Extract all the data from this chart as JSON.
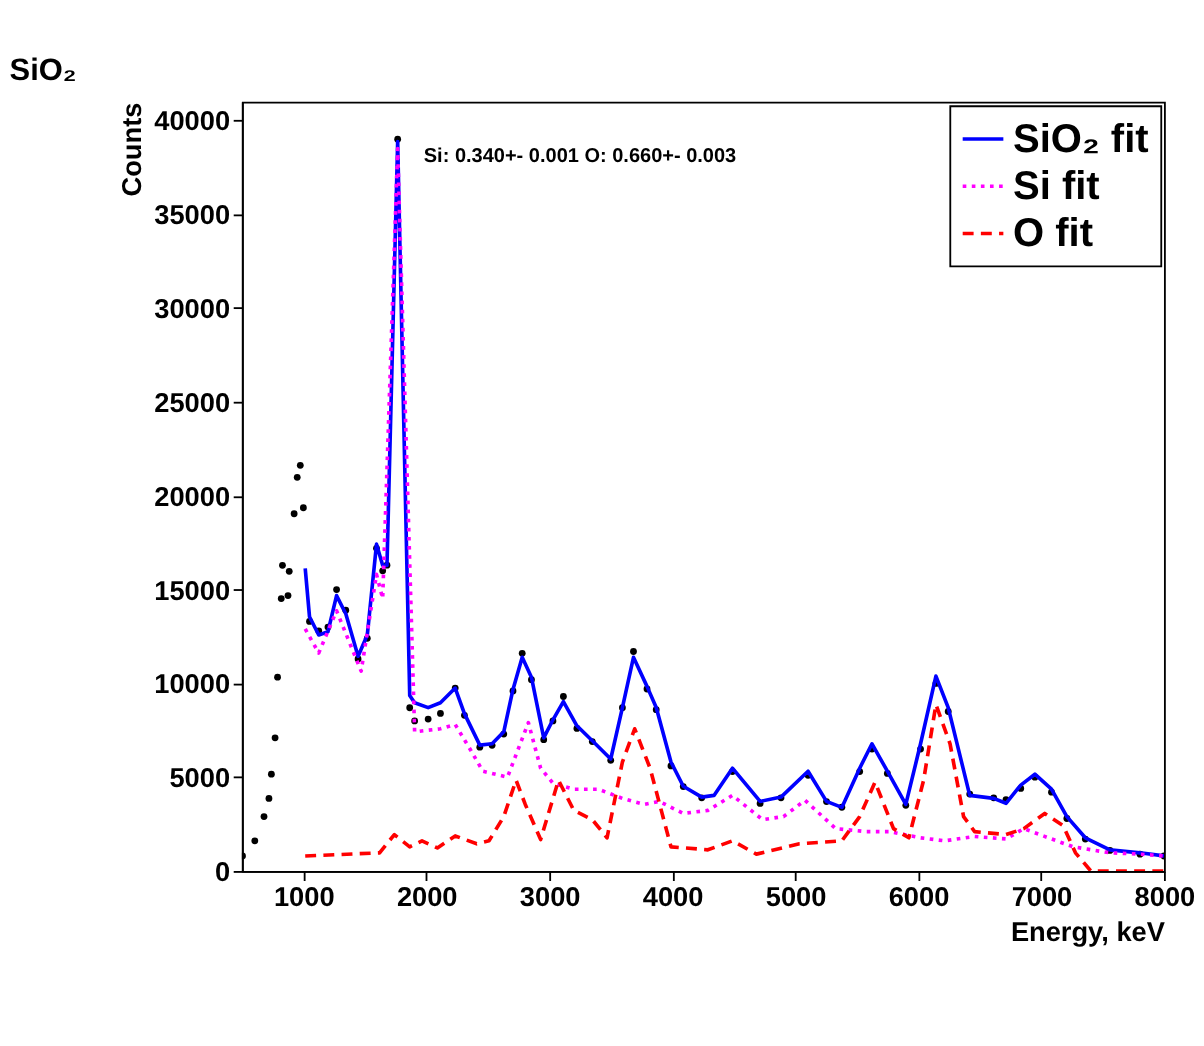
{
  "chart_data": {
    "type": "line",
    "title": "SiO₂",
    "xlabel": "Energy, keV",
    "ylabel": "Counts",
    "annotations": [
      "Si: 0.340+- 0.001 O: 0.660+- 0.003"
    ],
    "xlim": [
      500,
      8000
    ],
    "xticks": [
      1000,
      2000,
      3000,
      4000,
      5000,
      6000,
      7000,
      8000
    ],
    "ylim": [
      0,
      41000
    ],
    "yticks": [
      0,
      5000,
      10000,
      15000,
      20000,
      25000,
      30000,
      35000,
      40000
    ],
    "grid": false,
    "legend": "top right",
    "series": [
      {
        "type": "scatter",
        "marker": "circle",
        "color": "#000000",
        "x": [
          505,
          605,
          680,
          720,
          740,
          770,
          790,
          820,
          830,
          875,
          885,
          925,
          950,
          975,
          1000,
          1050,
          1125,
          1200,
          1270,
          1345,
          1445,
          1520,
          1595,
          1645,
          1680,
          1767,
          1865,
          1905,
          2015,
          2115,
          2235,
          2310,
          2435,
          2535,
          2630,
          2705,
          2780,
          2855,
          2955,
          3030,
          3115,
          3225,
          3350,
          3500,
          3595,
          3685,
          3795,
          3870,
          3990,
          4090,
          4240,
          4490,
          4715,
          4885,
          5105,
          5255,
          5380,
          5525,
          5625,
          5750,
          5900,
          6020,
          6145,
          6245,
          6420,
          6615,
          6715,
          6835,
          6950,
          7085,
          7210,
          7360,
          7560,
          7805,
          8000
        ],
        "values": [
          800,
          1610,
          2900,
          3870,
          5160,
          7100,
          10330,
          14520,
          16290,
          14680,
          15970,
          19040,
          20980,
          21620,
          19360,
          13300,
          12800,
          13000,
          15000,
          13900,
          11300,
          12400,
          17200,
          16000,
          16300,
          39000,
          8700,
          8000,
          8100,
          8400,
          9750,
          8300,
          6600,
          6700,
          7300,
          9600,
          11600,
          10200,
          7000,
          8000,
          9300,
          7600,
          6900,
          5900,
          8700,
          11700,
          9700,
          8600,
          5600,
          4500,
          3900,
          5300,
          3600,
          3900,
          5100,
          3700,
          3400,
          5300,
          6500,
          5200,
          3500,
          6500,
          10000,
          8500,
          4100,
          3900,
          3800,
          4400,
          5000,
          4200,
          2800,
          1700,
          1100,
          900,
          800
        ]
      },
      {
        "name": "SiO₂ fit",
        "line_style": "solid",
        "color": "#0000ff",
        "x": [
          1015,
          1050,
          1125,
          1200,
          1270,
          1345,
          1445,
          1520,
          1595,
          1645,
          1680,
          1767,
          1865,
          1905,
          2015,
          2115,
          2235,
          2310,
          2435,
          2535,
          2630,
          2705,
          2780,
          2855,
          2955,
          3030,
          3115,
          3225,
          3350,
          3500,
          3595,
          3685,
          3795,
          3870,
          3990,
          4090,
          4240,
          4340,
          4490,
          4715,
          4885,
          5105,
          5255,
          5380,
          5525,
          5625,
          5750,
          5900,
          6020,
          6145,
          6245,
          6420,
          6615,
          6715,
          6835,
          6950,
          7085,
          7210,
          7360,
          7560,
          7805,
          8000
        ],
        "values": [
          16130,
          13550,
          12580,
          12750,
          14680,
          13710,
          11450,
          12580,
          17420,
          16290,
          16290,
          38880,
          9360,
          8970,
          8710,
          8970,
          9750,
          8390,
          6710,
          6780,
          7420,
          9680,
          11390,
          10330,
          7100,
          8060,
          9030,
          7740,
          6940,
          5970,
          8710,
          11390,
          9840,
          8710,
          5810,
          4520,
          3940,
          4030,
          5480,
          3710,
          3940,
          5320,
          3710,
          3390,
          5480,
          6780,
          5320,
          3550,
          6780,
          10390,
          8710,
          4030,
          3870,
          3610,
          4580,
          5160,
          4360,
          2900,
          1770,
          1130,
          970,
          810
        ]
      },
      {
        "name": "Si fit",
        "line_style": "dotted",
        "color": "#ff00ff",
        "x": [
          1015,
          1125,
          1270,
          1470,
          1595,
          1645,
          1767,
          1905,
          2115,
          2235,
          2360,
          2460,
          2660,
          2830,
          2930,
          3030,
          3200,
          3400,
          3595,
          3770,
          3895,
          4090,
          4290,
          4490,
          4735,
          4905,
          5080,
          5330,
          5575,
          5770,
          6020,
          6215,
          6460,
          6715,
          6860,
          7060,
          7260,
          7560,
          7805,
          8000
        ],
        "values": [
          12900,
          11620,
          13870,
          10650,
          15810,
          14520,
          38500,
          7420,
          7580,
          7810,
          6450,
          5320,
          5000,
          7910,
          5480,
          4680,
          4360,
          4360,
          3870,
          3550,
          3710,
          3070,
          3230,
          4030,
          2740,
          2900,
          3770,
          2260,
          2100,
          2100,
          1770,
          1610,
          1840,
          1710,
          2260,
          1770,
          1290,
          970,
          900,
          800
        ]
      },
      {
        "name": "O fit",
        "line_style": "dashed",
        "color": "#ff0000",
        "x": [
          1015,
          1620,
          1740,
          1865,
          1965,
          2090,
          2235,
          2410,
          2510,
          2630,
          2730,
          2805,
          2930,
          3075,
          3200,
          3350,
          3470,
          3595,
          3695,
          3820,
          3990,
          4290,
          4490,
          4685,
          5035,
          5380,
          5525,
          5650,
          5800,
          5925,
          6045,
          6145,
          6260,
          6370,
          6460,
          6715,
          6860,
          7030,
          7180,
          7280,
          7405,
          8000
        ],
        "values": [
          800,
          970,
          1940,
          1290,
          1610,
          1230,
          1870,
          1450,
          1610,
          2900,
          4840,
          3550,
          1680,
          4840,
          3230,
          2740,
          1770,
          5810,
          7580,
          5480,
          1290,
          1130,
          1610,
          900,
          1450,
          1610,
          2900,
          4740,
          2260,
          1770,
          4840,
          8870,
          6780,
          2900,
          2100,
          1940,
          2260,
          3070,
          2420,
          970,
          0,
          0
        ]
      }
    ]
  }
}
